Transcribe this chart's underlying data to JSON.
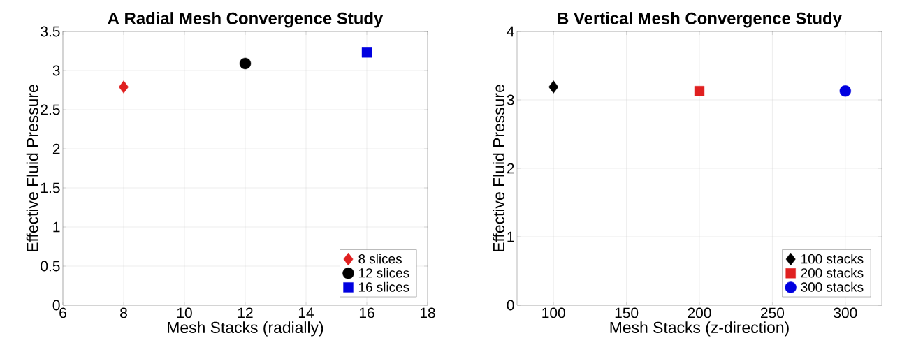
{
  "chart_data": [
    {
      "type": "scatter",
      "title": "A Radial Mesh Convergence Study",
      "xlabel": "Mesh Stacks (radially)",
      "ylabel": "Effective Fluid Pressure",
      "xlim": [
        6,
        18
      ],
      "xticks": [
        6,
        8,
        10,
        12,
        14,
        16,
        18
      ],
      "ylim": [
        0,
        3.5
      ],
      "yticks": [
        0,
        0.5,
        1,
        1.5,
        2,
        2.5,
        3,
        3.5
      ],
      "grid": true,
      "legend": "bottom right",
      "series": [
        {
          "name": "8 slices",
          "color": "#e02020",
          "marker": "diamond",
          "x": [
            8
          ],
          "values": [
            2.79
          ]
        },
        {
          "name": "12 slices",
          "color": "#000000",
          "marker": "circle",
          "x": [
            12
          ],
          "values": [
            3.09
          ]
        },
        {
          "name": "16 slices",
          "color": "#0000e0",
          "marker": "square",
          "x": [
            16
          ],
          "values": [
            3.23
          ]
        }
      ]
    },
    {
      "type": "scatter",
      "title": "B Vertical Mesh Convergence Study",
      "xlabel": "Mesh Stacks (z-direction)",
      "ylabel": "Effective Fluid Pressure",
      "xlim": [
        75,
        325
      ],
      "xticks": [
        100,
        150,
        200,
        250,
        300
      ],
      "ylim": [
        0,
        4
      ],
      "yticks": [
        0,
        1,
        2,
        3,
        4
      ],
      "grid": true,
      "legend": "bottom right",
      "series": [
        {
          "name": "100 stacks",
          "color": "#000000",
          "marker": "diamond",
          "x": [
            100
          ],
          "values": [
            3.19
          ]
        },
        {
          "name": "200 stacks",
          "color": "#e02020",
          "marker": "square",
          "x": [
            200
          ],
          "values": [
            3.13
          ]
        },
        {
          "name": "300 stacks",
          "color": "#0000e0",
          "marker": "circle",
          "x": [
            300
          ],
          "values": [
            3.13
          ]
        }
      ]
    }
  ]
}
